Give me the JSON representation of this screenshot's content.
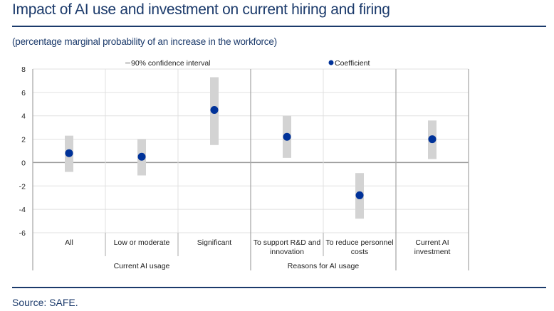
{
  "title": "Impact of AI use and investment on current hiring and firing",
  "subtitle": "(percentage marginal probability of an increase in the workforce)",
  "source": "Source: SAFE.",
  "colors": {
    "title": "#1b3a6b",
    "coefficient": "#003299",
    "ci": "#d3d3d3",
    "grid": "#e0e0e0"
  },
  "chart_data": {
    "type": "scatter",
    "title": "Impact of AI use and investment on current hiring and firing",
    "subtitle": "(percentage marginal probability of an increase in the workforce)",
    "legend": {
      "placement": "top",
      "entries": [
        "90% confidence interval",
        "Coefficient"
      ]
    },
    "ylim": [
      -6,
      8
    ],
    "yticks": [
      8,
      6,
      4,
      2,
      0,
      -2,
      -4,
      -6
    ],
    "grid": true,
    "categories": [
      "All",
      "Low or moderate",
      "Significant",
      "To support R&D and innovation",
      "To reduce personnel costs",
      "Current AI investment"
    ],
    "category_lines": [
      [
        "All"
      ],
      [
        "Low or moderate"
      ],
      [
        "Significant"
      ],
      [
        "To support R&D and",
        "innovation"
      ],
      [
        "To reduce personnel",
        "costs"
      ],
      [
        "Current AI",
        "investment"
      ]
    ],
    "groups": [
      {
        "label": "Current AI usage",
        "categories": [
          "All",
          "Low or moderate",
          "Significant"
        ]
      },
      {
        "label": "Reasons for AI usage",
        "categories": [
          "To support R&D and innovation",
          "To reduce personnel costs"
        ]
      },
      {
        "label": "",
        "categories": [
          "Current AI investment"
        ]
      }
    ],
    "series": [
      {
        "name": "Coefficient",
        "values": [
          0.8,
          0.5,
          4.5,
          2.2,
          -2.8,
          2.0
        ]
      },
      {
        "name": "90% confidence interval",
        "low": [
          -0.8,
          -1.1,
          1.5,
          0.4,
          -4.8,
          0.3
        ],
        "high": [
          2.3,
          2.0,
          7.3,
          4.0,
          -0.9,
          3.6
        ]
      }
    ]
  }
}
